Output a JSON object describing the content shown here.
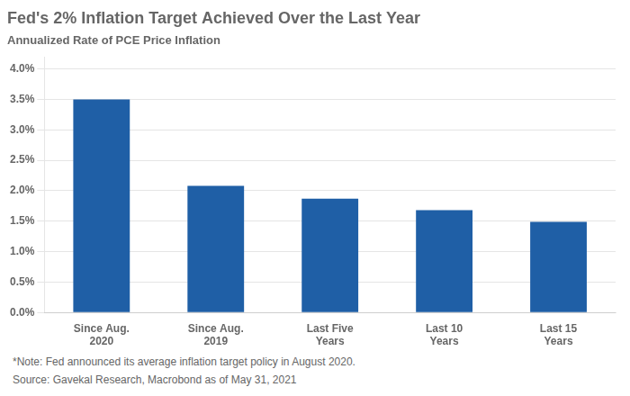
{
  "chart_data": {
    "type": "bar",
    "title": "Fed's 2% Inflation Target Achieved Over the Last Year",
    "subtitle": "Annualized Rate of PCE Price Inflation",
    "annotations": [
      "*Note: Fed announced its average inflation target policy in August 2020.",
      "Source: Gavekal Research, Macrobond as of May 31, 2021"
    ],
    "categories": [
      "Since Aug.\n2020",
      "Since Aug.\n2019",
      "Last Five\nYears",
      "Last 10\nYears",
      "Last 15\nYears"
    ],
    "values": [
      0.035,
      0.0208,
      0.0187,
      0.0168,
      0.0149
    ],
    "color": "#1F5FA6",
    "ylim": [
      0,
      0.042
    ],
    "yticks": [
      {
        "value": 0.0,
        "label": "0.0%"
      },
      {
        "value": 0.005,
        "label": "0.5%"
      },
      {
        "value": 0.01,
        "label": "1.0%"
      },
      {
        "value": 0.015,
        "label": "1.5%"
      },
      {
        "value": 0.02,
        "label": "2.0%"
      },
      {
        "value": 0.025,
        "label": "2.5%"
      },
      {
        "value": 0.03,
        "label": "3.0%"
      },
      {
        "value": 0.035,
        "label": "3.5%"
      },
      {
        "value": 0.04,
        "label": "4.0%"
      }
    ],
    "grid": true
  }
}
